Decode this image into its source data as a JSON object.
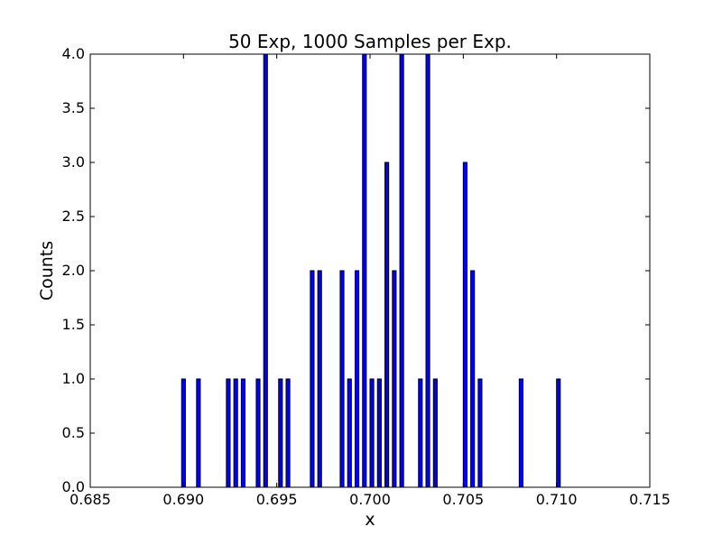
{
  "chart_data": {
    "type": "bar",
    "title": "50 Exp, 1000 Samples per Exp.",
    "xlabel": "x",
    "ylabel": "Counts",
    "xlim": [
      0.685,
      0.715
    ],
    "ylim": [
      0.0,
      4.0
    ],
    "xticks": [
      "0.685",
      "0.690",
      "0.695",
      "0.700",
      "0.705",
      "0.710",
      "0.715"
    ],
    "yticks": [
      "0.0",
      "0.5",
      "1.0",
      "1.5",
      "2.0",
      "2.5",
      "3.0",
      "3.5",
      "4.0"
    ],
    "grid": false,
    "bin_width": 0.0002,
    "bars": [
      {
        "x": 0.6899,
        "count": 1
      },
      {
        "x": 0.6907,
        "count": 1
      },
      {
        "x": 0.6923,
        "count": 1
      },
      {
        "x": 0.6927,
        "count": 1
      },
      {
        "x": 0.6931,
        "count": 1
      },
      {
        "x": 0.6939,
        "count": 1
      },
      {
        "x": 0.6943,
        "count": 4
      },
      {
        "x": 0.6951,
        "count": 1
      },
      {
        "x": 0.6955,
        "count": 1
      },
      {
        "x": 0.6968,
        "count": 2
      },
      {
        "x": 0.6972,
        "count": 2
      },
      {
        "x": 0.6984,
        "count": 2
      },
      {
        "x": 0.6988,
        "count": 1
      },
      {
        "x": 0.6992,
        "count": 2
      },
      {
        "x": 0.6996,
        "count": 4
      },
      {
        "x": 0.7,
        "count": 1
      },
      {
        "x": 0.7004,
        "count": 1
      },
      {
        "x": 0.7008,
        "count": 3
      },
      {
        "x": 0.7012,
        "count": 2
      },
      {
        "x": 0.7016,
        "count": 4
      },
      {
        "x": 0.7026,
        "count": 1
      },
      {
        "x": 0.703,
        "count": 4
      },
      {
        "x": 0.7034,
        "count": 1
      },
      {
        "x": 0.705,
        "count": 3
      },
      {
        "x": 0.7054,
        "count": 2
      },
      {
        "x": 0.7058,
        "count": 1
      },
      {
        "x": 0.708,
        "count": 1
      },
      {
        "x": 0.71,
        "count": 1
      }
    ],
    "colors": {
      "bar_fill": "#0000ff",
      "bar_edge": "#000000",
      "axes": "#000000",
      "background": "#ffffff"
    }
  }
}
